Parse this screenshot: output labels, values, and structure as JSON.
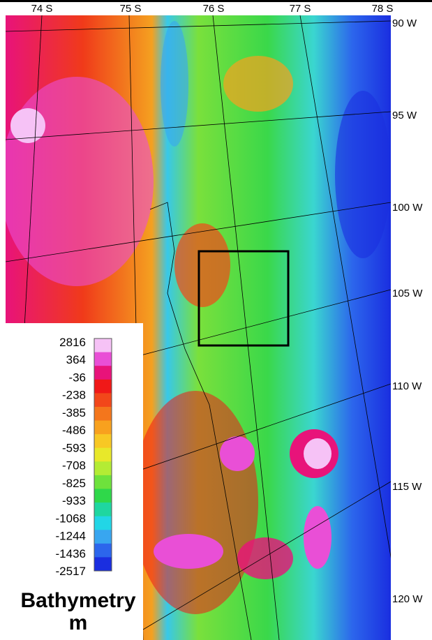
{
  "map": {
    "top_labels": [
      "74 S",
      "75 S",
      "76 S",
      "77 S",
      "78 S"
    ],
    "right_labels": [
      "90 W",
      "95 W",
      "100 W",
      "105 W",
      "110 W",
      "115 W",
      "120 W"
    ],
    "legend": {
      "title": "Bathymetry",
      "unit": "m",
      "labels": [
        2816,
        364,
        -36,
        -238,
        -385,
        -486,
        -593,
        -708,
        -825,
        -933,
        -1068,
        -1244,
        -1436,
        -2517
      ],
      "colors": [
        "#f6c2f6",
        "#e94fd6",
        "#e8137a",
        "#f01818",
        "#f2471a",
        "#f4761c",
        "#f8a11e",
        "#f8c824",
        "#e8e82a",
        "#b4ec34",
        "#6ee23c",
        "#2fd84a",
        "#1fd6a0",
        "#22d6e6",
        "#38a6f0",
        "#2c66ec",
        "#1a2ee0"
      ]
    }
  }
}
